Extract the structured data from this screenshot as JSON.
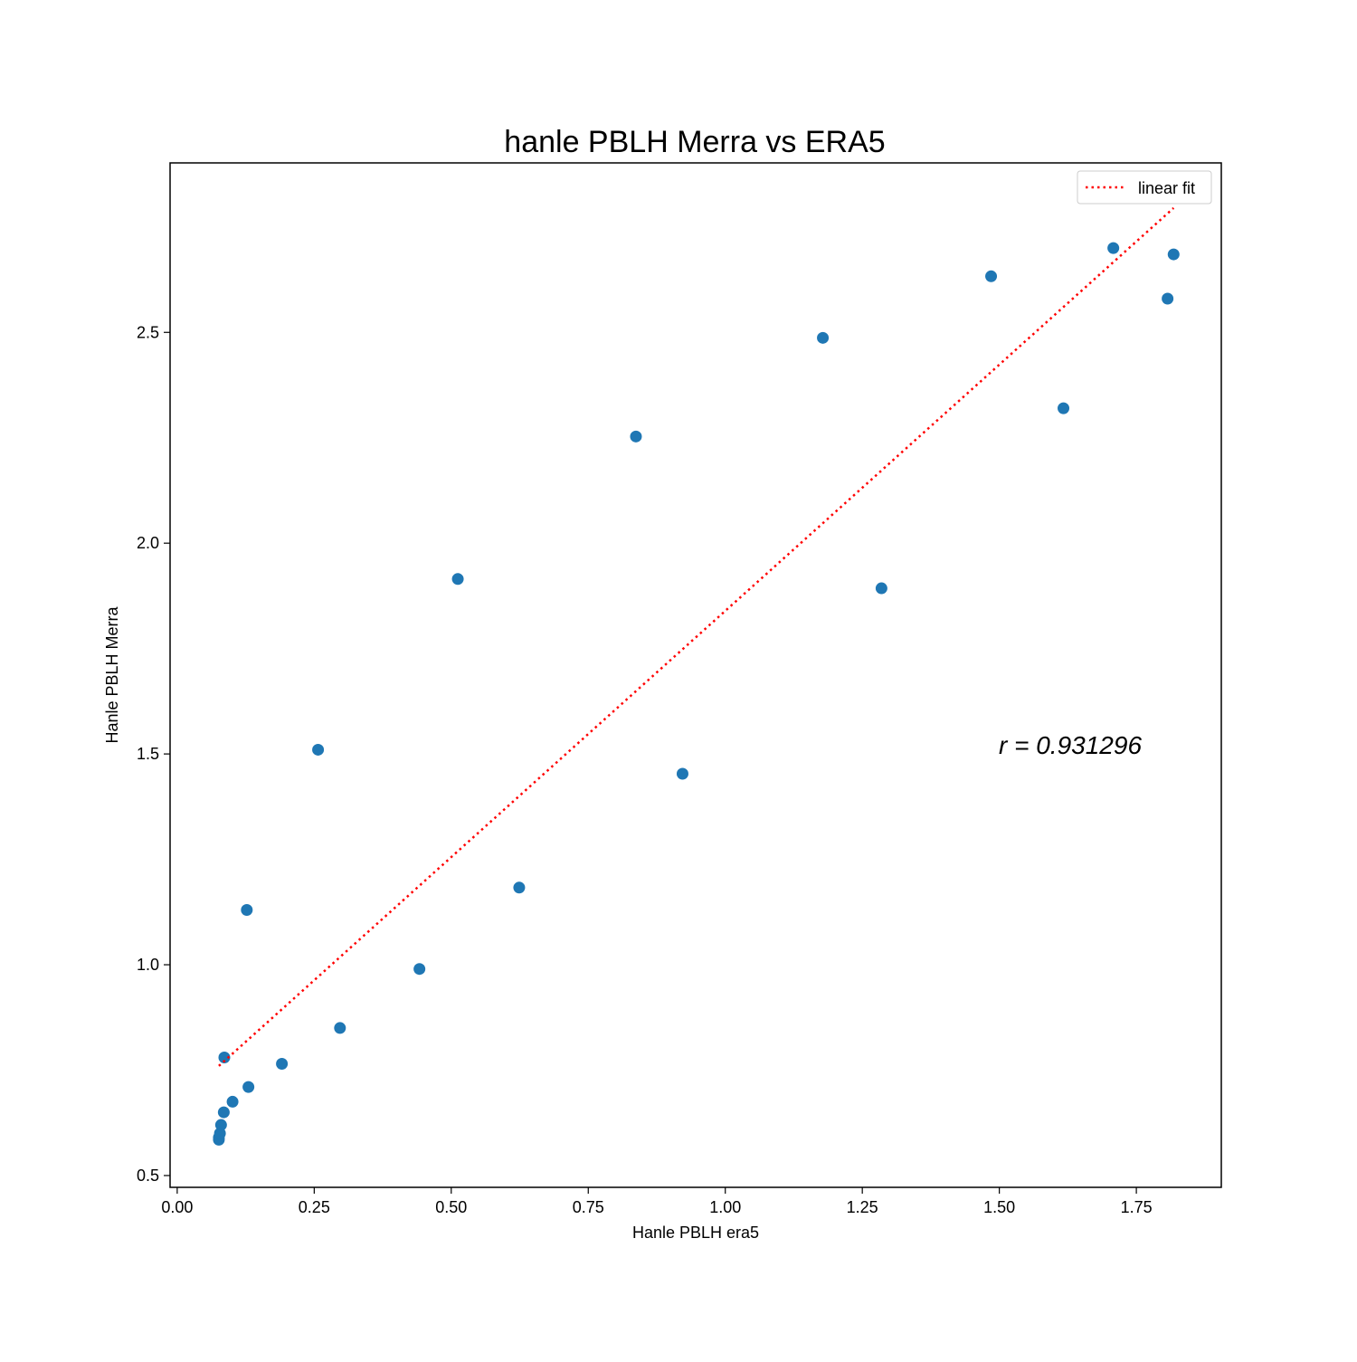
{
  "chart_data": {
    "type": "scatter",
    "title": "hanle PBLH Merra vs ERA5",
    "xlabel": "Hanle PBLH era5",
    "ylabel": "Hanle PBLH Merra",
    "xlim": [
      -0.013,
      1.905
    ],
    "ylim": [
      0.472,
      2.902
    ],
    "xticks": [
      0.0,
      0.25,
      0.5,
      0.75,
      1.0,
      1.25,
      1.5,
      1.75
    ],
    "xtick_labels": [
      "0.00",
      "0.25",
      "0.50",
      "0.75",
      "1.00",
      "1.25",
      "1.50",
      "1.75"
    ],
    "yticks": [
      0.5,
      1.0,
      1.5,
      2.0,
      2.5
    ],
    "ytick_labels": [
      "0.5",
      "1.0",
      "1.5",
      "2.0",
      "2.5"
    ],
    "grid": false,
    "legend": {
      "position": "top-right",
      "entries": [
        "linear fit"
      ]
    },
    "annotation": "r = 0.931296",
    "colors": {
      "points": "#1f77b4",
      "fit": "#ff0000"
    },
    "series": [
      {
        "type": "scatter",
        "x": [
          0.076,
          0.076,
          0.078,
          0.08,
          0.085,
          0.086,
          0.101,
          0.127,
          0.13,
          0.191,
          0.257,
          0.297,
          0.442,
          0.512,
          0.624,
          0.837,
          0.922,
          1.178,
          1.285,
          1.485,
          1.617,
          1.708,
          1.807,
          1.818
        ],
        "y": [
          0.585,
          0.59,
          0.6,
          0.62,
          0.65,
          0.78,
          0.675,
          1.13,
          0.71,
          0.765,
          1.51,
          0.85,
          0.99,
          1.915,
          1.183,
          2.253,
          1.453,
          2.487,
          1.893,
          2.633,
          2.32,
          2.7,
          2.58,
          2.685
        ]
      },
      {
        "name": "linear fit",
        "type": "line",
        "style": "dotted",
        "x": [
          0.076,
          1.818
        ],
        "y": [
          0.76,
          2.795
        ]
      }
    ]
  }
}
